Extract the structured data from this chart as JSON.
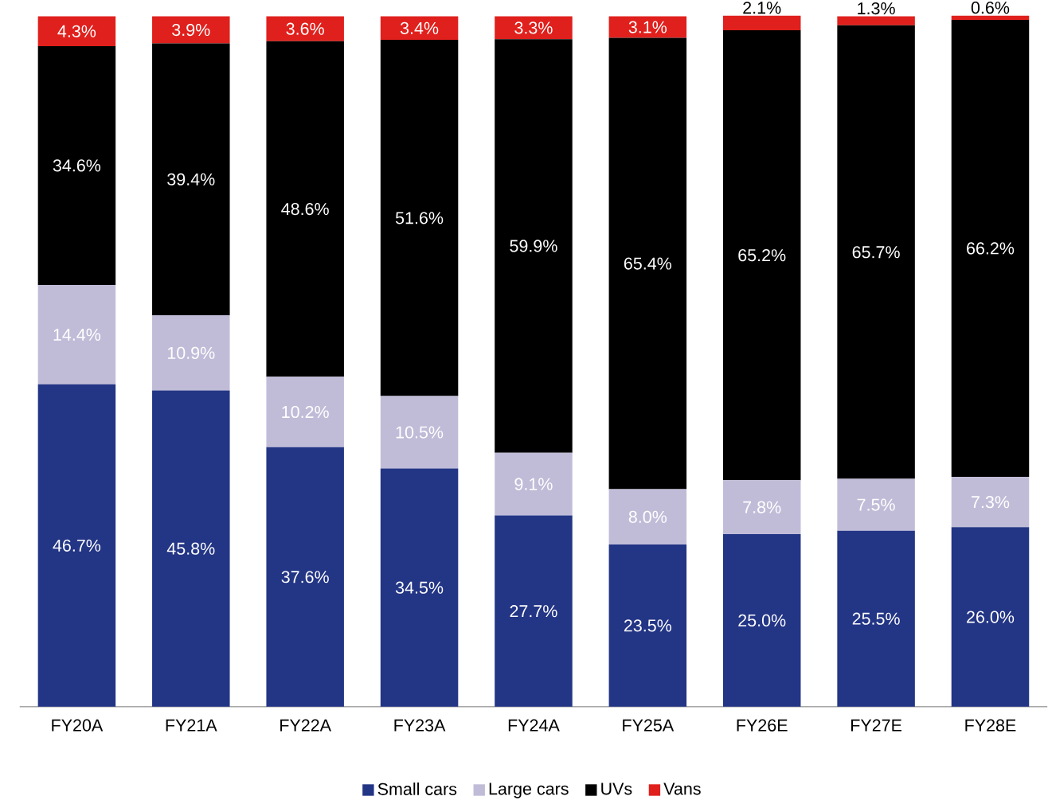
{
  "chart_data": {
    "type": "bar",
    "stacked": true,
    "categories": [
      "FY20A",
      "FY21A",
      "FY22A",
      "FY23A",
      "FY24A",
      "FY25A",
      "FY26E",
      "FY27E",
      "FY28E"
    ],
    "series": [
      {
        "name": "Small cars",
        "color": "#233585",
        "values": [
          46.7,
          45.8,
          37.6,
          34.5,
          27.7,
          23.5,
          25.0,
          25.5,
          26.0
        ],
        "value_labels": [
          "46.7%",
          "45.8%",
          "37.6%",
          "34.5%",
          "27.7%",
          "23.5%",
          "25.0%",
          "25.5%",
          "26.0%"
        ]
      },
      {
        "name": "Large cars",
        "color": "#c0bcd8",
        "values": [
          14.4,
          10.9,
          10.2,
          10.5,
          9.1,
          8.0,
          7.8,
          7.5,
          7.3
        ],
        "value_labels": [
          "14.4%",
          "10.9%",
          "10.2%",
          "10.5%",
          "9.1%",
          "8.0%",
          "7.8%",
          "7.5%",
          "7.3%"
        ]
      },
      {
        "name": "UVs",
        "color": "#000000",
        "values": [
          34.6,
          39.4,
          48.6,
          51.6,
          59.9,
          65.4,
          65.2,
          65.7,
          66.2
        ],
        "value_labels": [
          "34.6%",
          "39.4%",
          "48.6%",
          "51.6%",
          "59.9%",
          "65.4%",
          "65.2%",
          "65.7%",
          "66.2%"
        ]
      },
      {
        "name": "Vans",
        "color": "#e0201c",
        "values": [
          4.3,
          3.9,
          3.6,
          3.4,
          3.3,
          3.1,
          2.1,
          1.3,
          0.6
        ],
        "value_labels": [
          "4.3%",
          "3.9%",
          "3.6%",
          "3.4%",
          "3.3%",
          "3.1%",
          "2.1%",
          "1.3%",
          "0.6%"
        ]
      }
    ],
    "ylim": [
      0,
      100
    ],
    "tick_labels": "x",
    "legend": "bottom"
  }
}
